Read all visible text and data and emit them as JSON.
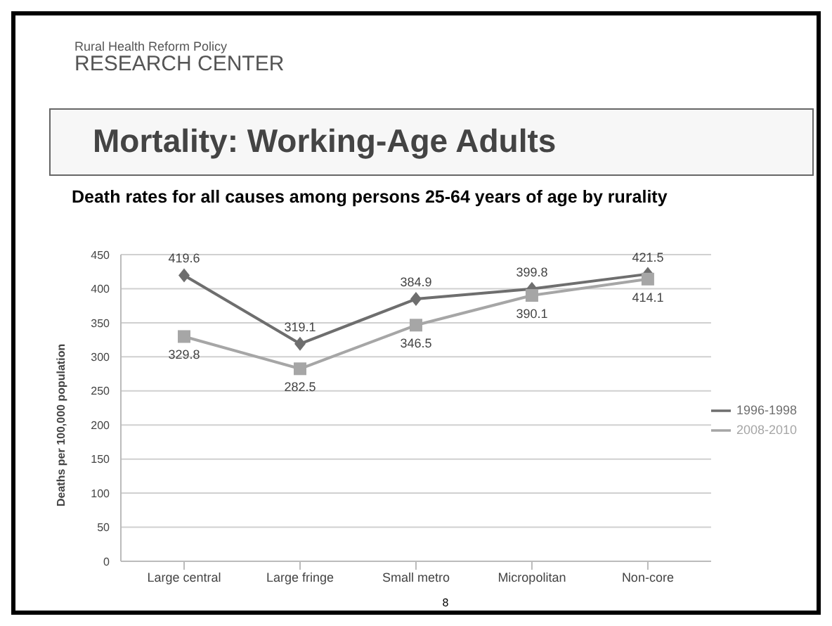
{
  "chart_data": {
    "type": "line",
    "title": "Mortality: Working-Age Adults",
    "subtitle": "Death rates for all causes among persons 25-64 years of age by rurality",
    "ylabel": "Deaths per 100,000 population",
    "annotations": [
      "Rural Health Reform Policy",
      "RESEARCH CENTER",
      "8"
    ],
    "categories": [
      "Large central",
      "Large fringe",
      "Small metro",
      "Micropolitan",
      "Non-core"
    ],
    "series": [
      {
        "name": "1996-1998",
        "color": "#6e6e6e",
        "marker": "diamond",
        "values": [
          419.6,
          319.1,
          384.9,
          399.8,
          421.5
        ]
      },
      {
        "name": "2008-2010",
        "color": "#a6a6a6",
        "marker": "square",
        "values": [
          329.8,
          282.5,
          346.5,
          390.1,
          414.1
        ]
      }
    ],
    "ylim": [
      0,
      450
    ],
    "yticks": [
      0,
      50,
      100,
      150,
      200,
      250,
      300,
      350,
      400,
      450
    ],
    "grid": "y",
    "legend": "right",
    "data_labels": true
  }
}
